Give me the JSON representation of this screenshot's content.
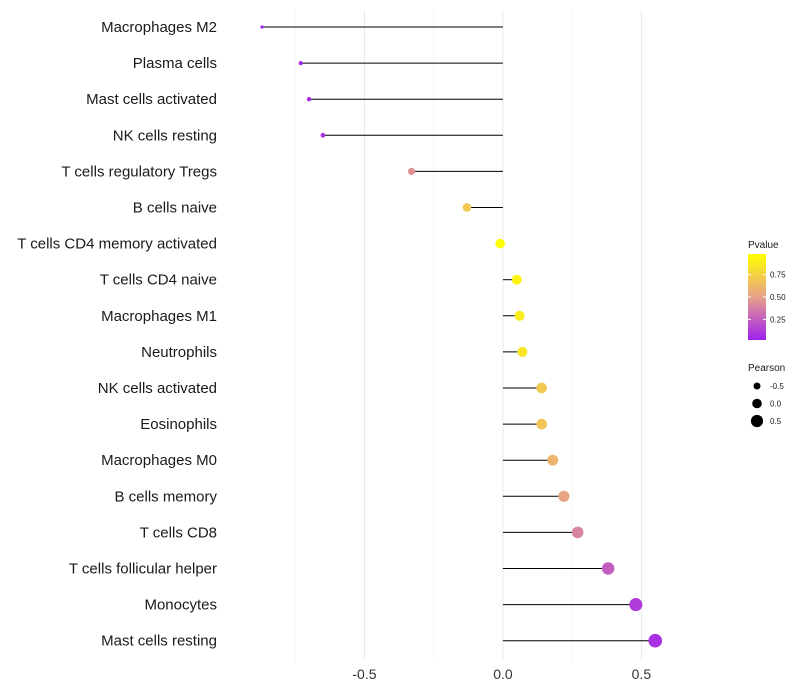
{
  "chart_data": {
    "type": "lollipop",
    "title": "",
    "xlabel": "",
    "ylabel": "",
    "xlim": [
      -1.0,
      0.82
    ],
    "x_ticks": [
      -0.5,
      0.0,
      0.5
    ],
    "x_tick_labels": [
      "-0.5",
      "0.0",
      "0.5"
    ],
    "baseline": 0,
    "categories": [
      "Macrophages M2",
      "Plasma cells",
      "Mast cells activated",
      "NK cells resting",
      "T cells regulatory  Tregs",
      "B cells naive",
      "T cells CD4 memory activated",
      "T cells CD4 naive",
      "Macrophages M1",
      "Neutrophils",
      "NK cells activated",
      "Eosinophils",
      "Macrophages M0",
      "B cells memory",
      "T cells CD8",
      "T cells follicular helper",
      "Monocytes",
      "Mast cells resting"
    ],
    "pearson": [
      -0.87,
      -0.73,
      -0.7,
      -0.65,
      -0.33,
      -0.13,
      -0.01,
      0.05,
      0.06,
      0.07,
      0.14,
      0.14,
      0.18,
      0.22,
      0.27,
      0.38,
      0.48,
      0.55
    ],
    "pvalue": [
      0.02,
      0.05,
      0.06,
      0.1,
      0.45,
      0.7,
      0.98,
      0.92,
      0.88,
      0.85,
      0.7,
      0.68,
      0.6,
      0.52,
      0.4,
      0.25,
      0.12,
      0.08
    ],
    "color_legend": {
      "title": "Pvalue",
      "ticks": [
        0.25,
        0.5,
        0.75
      ],
      "tick_labels": [
        "0.25",
        "0.50",
        "0.75"
      ],
      "range": [
        0.02,
        0.98
      ],
      "low_color": "#a020f0",
      "mid_color": "#e7a08a",
      "high_color": "#ffff00"
    },
    "size_legend": {
      "title": "Pearson",
      "values": [
        -0.5,
        0.0,
        0.5
      ],
      "labels": [
        "-0.5",
        "0.0",
        "0.5"
      ]
    },
    "grid": true,
    "legend_position": "right"
  }
}
